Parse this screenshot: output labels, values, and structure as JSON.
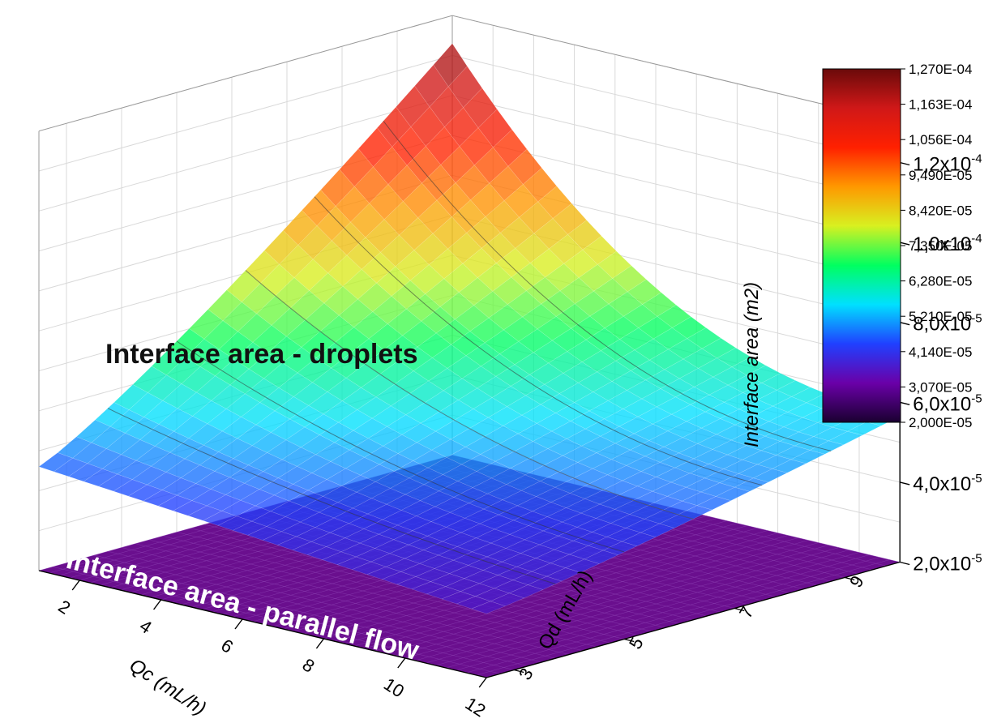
{
  "chart_data": {
    "type": "surface3d",
    "title": "",
    "xlabel": "Qc (mL/h)",
    "ylabel": "Qd (mL/h)",
    "zlabel": "Interface area (m2)",
    "x_ticks": [
      "2",
      "4",
      "6",
      "8",
      "10",
      "12"
    ],
    "y_ticks": [
      "3",
      "5",
      "7",
      "9"
    ],
    "z_ticks": [
      {
        "base": "2,0x10",
        "exp": "-5"
      },
      {
        "base": "4,0x10",
        "exp": "-5"
      },
      {
        "base": "6,0x10",
        "exp": "-5"
      },
      {
        "base": "8,0x10",
        "exp": "-5"
      },
      {
        "base": "1,0x10",
        "exp": "-4"
      },
      {
        "base": "1,2x10",
        "exp": "-4"
      }
    ],
    "xlim": [
      1,
      12
    ],
    "ylim": [
      2.5,
      10
    ],
    "zlim": [
      2e-05,
      0.00013
    ],
    "surfaces": [
      {
        "name": "Interface area - droplets",
        "corner_values": {
          "qc1_qd10": 0.000123,
          "qc12_qd10": 5.65e-05,
          "qc1_qd2.5": 4.6e-05,
          "qc12_qd2.5": 3.6e-05
        }
      },
      {
        "name": "Interface area - parallel flow",
        "constant_value": 2e-05
      }
    ],
    "colorbar": {
      "labels": [
        "1,270E-04",
        "1,163E-04",
        "1,056E-04",
        "9,490E-05",
        "8,420E-05",
        "7,350E-05",
        "6,280E-05",
        "5,210E-05",
        "4,140E-05",
        "3,070E-05",
        "2,000E-05"
      ],
      "min": 2e-05,
      "max": 0.000127,
      "colors": [
        "#1a0030",
        "#6a00a8",
        "#2040ff",
        "#00e0ff",
        "#00ff60",
        "#d8f020",
        "#ff9800",
        "#ff2000",
        "#d01818",
        "#6a0a0a"
      ]
    },
    "grid": true,
    "legend": "none"
  }
}
